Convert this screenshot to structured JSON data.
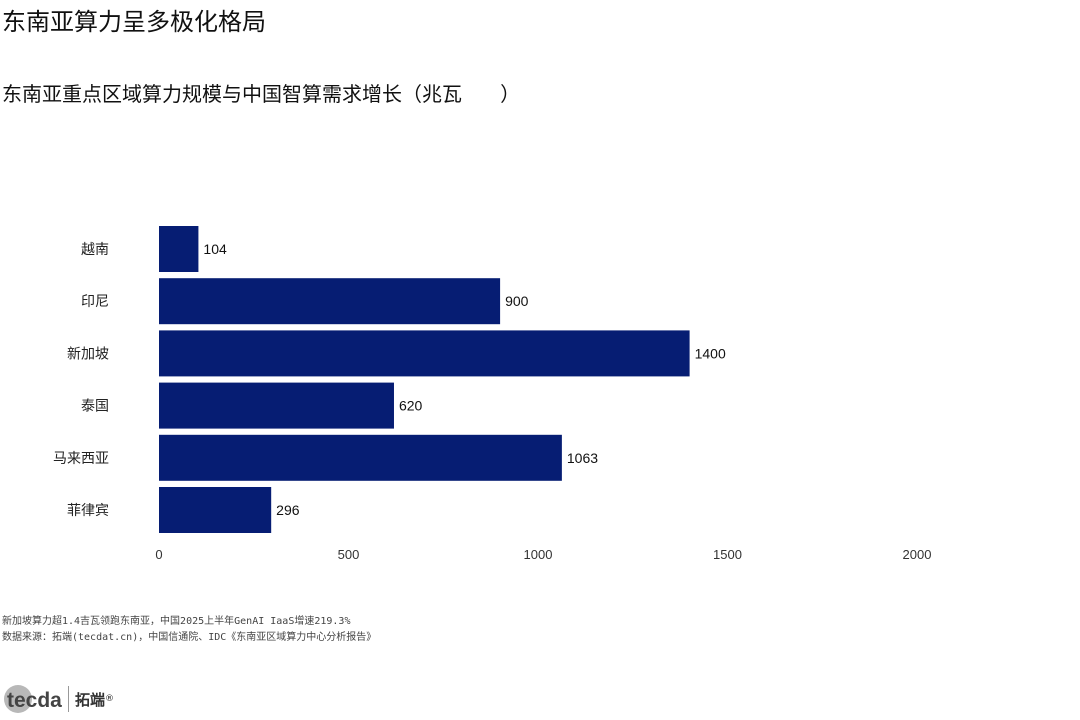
{
  "header": {
    "title": "东南亚算力呈多极化格局",
    "subtitle": "东南亚重点区域算力规模与中国智算需求增长（兆瓦      ）"
  },
  "chart_data": {
    "type": "bar",
    "orientation": "horizontal",
    "categories": [
      "越南",
      "印尼",
      "新加坡",
      "泰国",
      "马来西亚",
      "菲律宾"
    ],
    "values": [
      104,
      900,
      1400,
      620,
      1063,
      296
    ],
    "xlim": [
      0,
      2000
    ],
    "xticks": [
      0,
      500,
      1000,
      1500,
      2000
    ],
    "bar_color": "#061d73",
    "grid": false
  },
  "footer": {
    "note": "新加坡算力超1.4吉瓦领跑东南亚，中国2025上半年GenAI IaaS增速219.3%",
    "source": "数据来源：拓端(tecdat.cn)，中国信通院、IDC《东南亚区域算力中心分析报告》"
  },
  "logo": {
    "wordmark": "tecdat",
    "name_cn": "拓端",
    "registered": "®"
  }
}
